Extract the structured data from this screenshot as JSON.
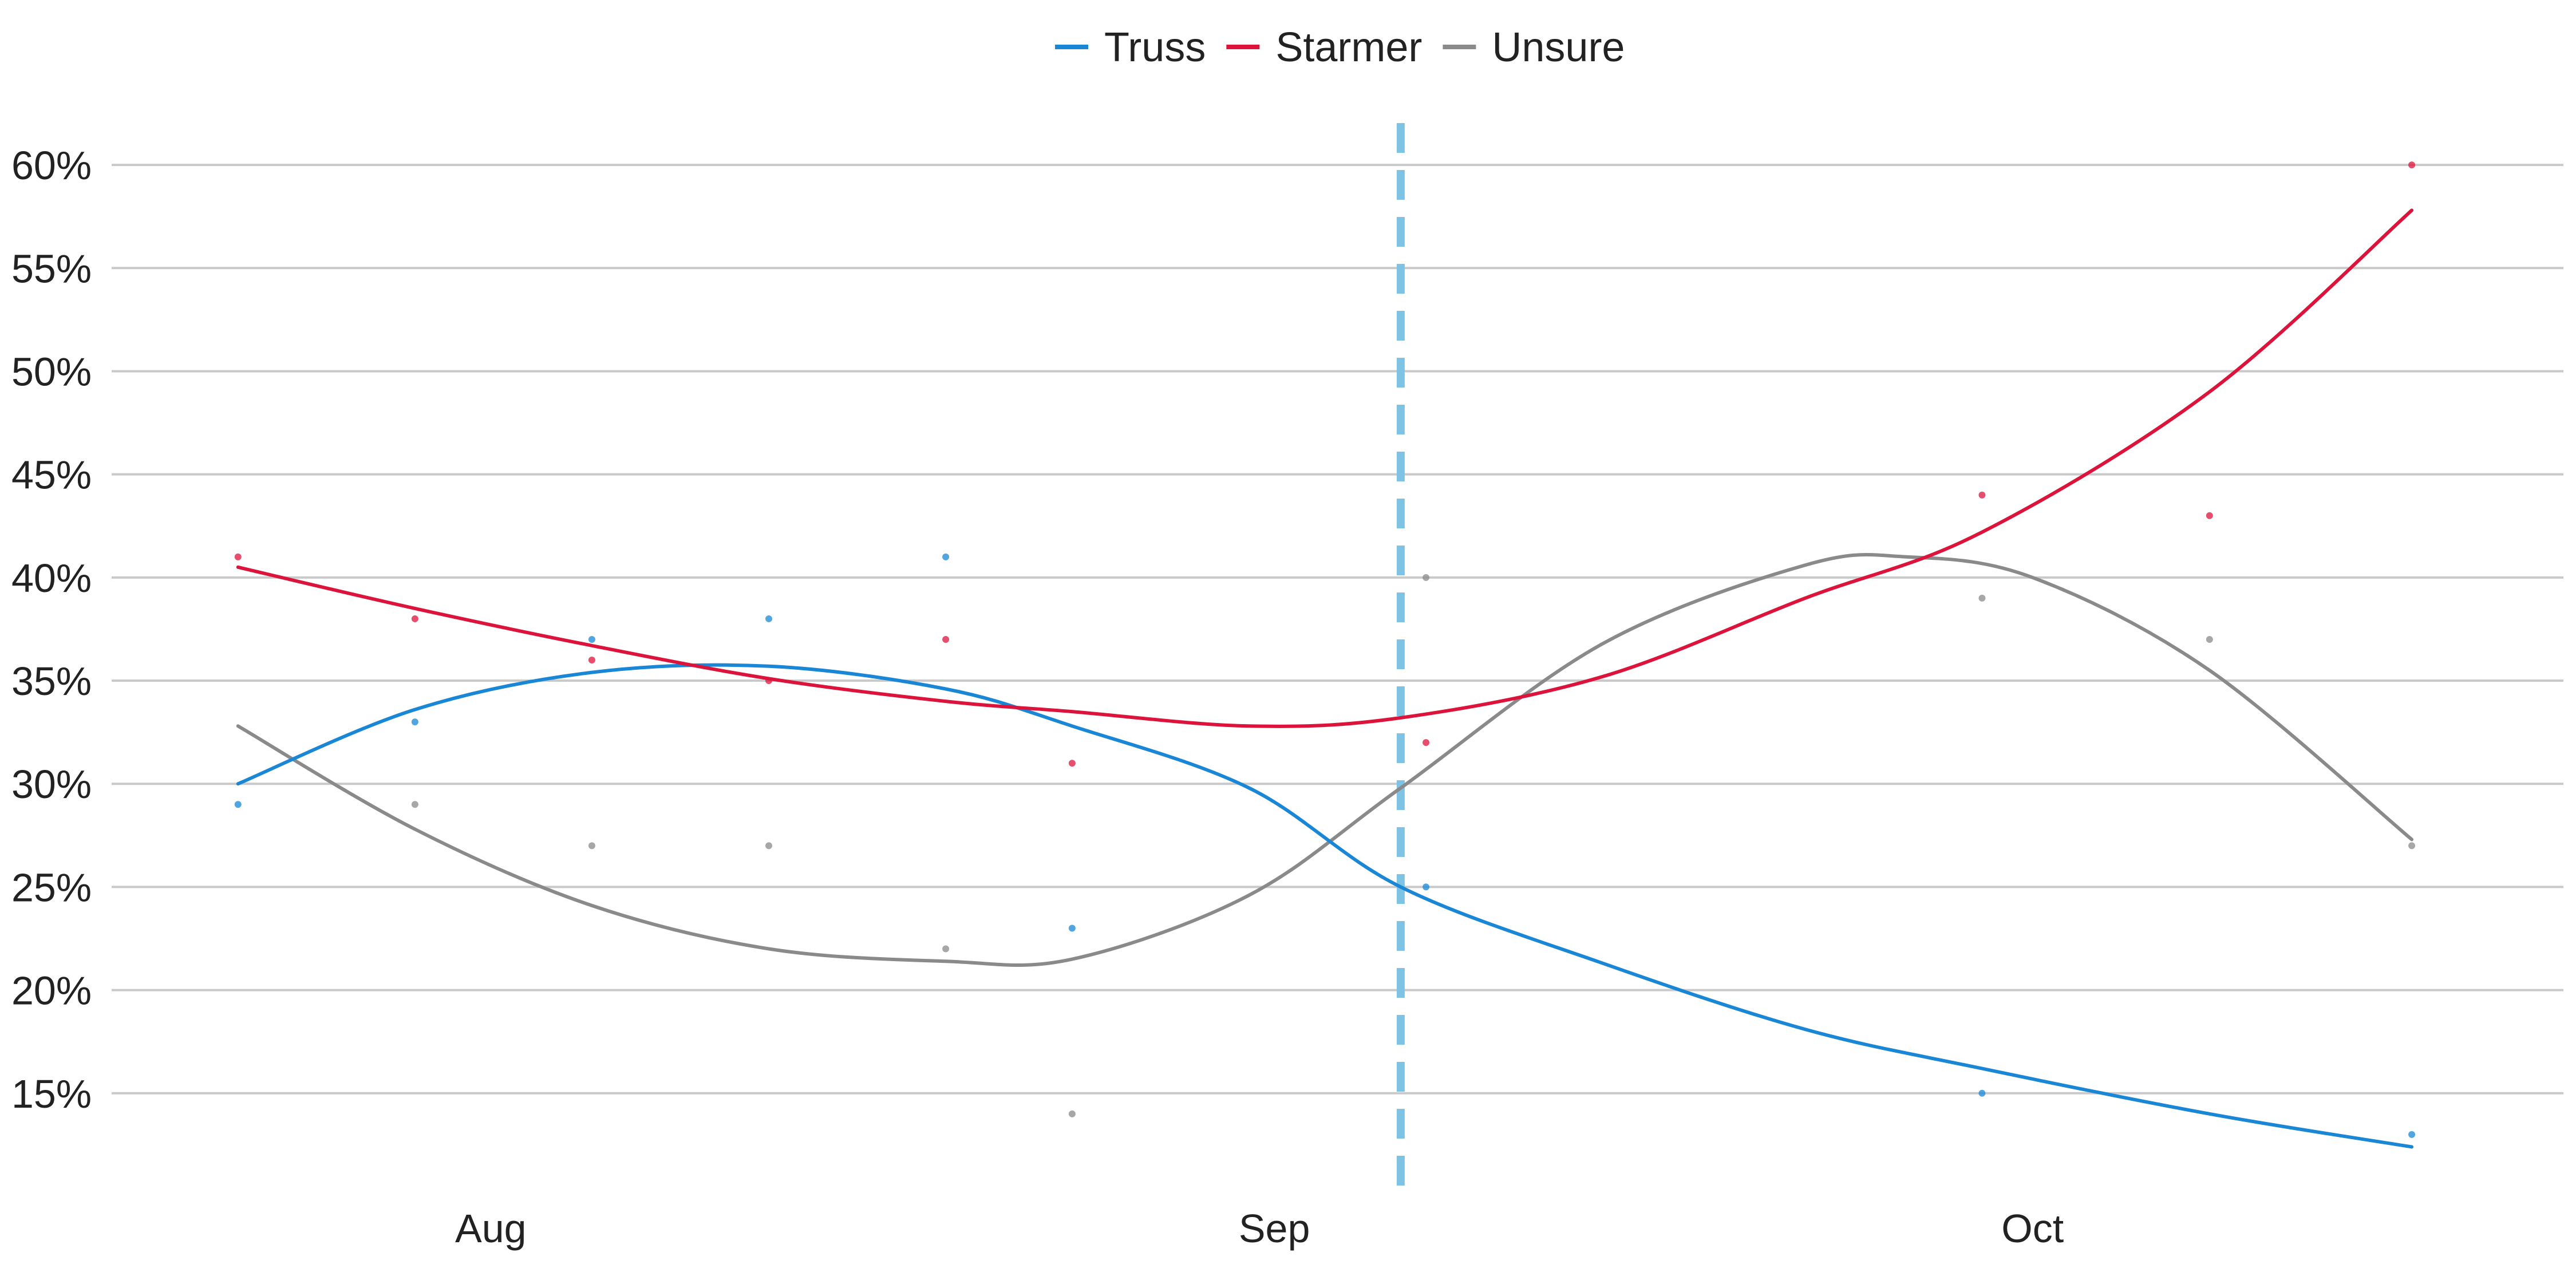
{
  "chart_data": {
    "type": "line",
    "x_axis": {
      "ticks": [
        {
          "label": "Aug",
          "date": "2022-08-01"
        },
        {
          "label": "Sep",
          "date": "2022-09-01"
        },
        {
          "label": "Oct",
          "date": "2022-10-01"
        }
      ],
      "range": [
        "2022-07-17",
        "2022-10-22"
      ]
    },
    "y_axis": {
      "ticks": [
        {
          "label": "15%",
          "value": 15
        },
        {
          "label": "20%",
          "value": 20
        },
        {
          "label": "25%",
          "value": 25
        },
        {
          "label": "30%",
          "value": 30
        },
        {
          "label": "35%",
          "value": 35
        },
        {
          "label": "40%",
          "value": 40
        },
        {
          "label": "45%",
          "value": 45
        },
        {
          "label": "50%",
          "value": 50
        },
        {
          "label": "55%",
          "value": 55
        },
        {
          "label": "60%",
          "value": 60
        }
      ],
      "range": [
        10,
        63
      ]
    },
    "grid": true,
    "legend_position": "top-center",
    "reference_line": {
      "date": "2022-09-06",
      "style": "dashed",
      "color": "#7ec3e3"
    },
    "series": [
      {
        "name": "Truss",
        "color": "#1a87d6",
        "points": [
          {
            "date": "2022-07-22",
            "value": 29
          },
          {
            "date": "2022-07-29",
            "value": 33
          },
          {
            "date": "2022-08-05",
            "value": 37
          },
          {
            "date": "2022-08-12",
            "value": 38
          },
          {
            "date": "2022-08-19",
            "value": 41
          },
          {
            "date": "2022-08-24",
            "value": 23
          },
          {
            "date": "2022-09-07",
            "value": 25
          },
          {
            "date": "2022-09-29",
            "value": 15
          },
          {
            "date": "2022-10-16",
            "value": 13
          }
        ],
        "trend": [
          {
            "date": "2022-07-22",
            "value": 30.0
          },
          {
            "date": "2022-07-29",
            "value": 33.6
          },
          {
            "date": "2022-08-05",
            "value": 35.4
          },
          {
            "date": "2022-08-12",
            "value": 35.7
          },
          {
            "date": "2022-08-19",
            "value": 34.6
          },
          {
            "date": "2022-08-24",
            "value": 32.8
          },
          {
            "date": "2022-08-31",
            "value": 29.8
          },
          {
            "date": "2022-09-06",
            "value": 25.0
          },
          {
            "date": "2022-09-14",
            "value": 21.3
          },
          {
            "date": "2022-09-22",
            "value": 18.1
          },
          {
            "date": "2022-09-29",
            "value": 16.2
          },
          {
            "date": "2022-10-08",
            "value": 14.0
          },
          {
            "date": "2022-10-16",
            "value": 12.4
          }
        ]
      },
      {
        "name": "Starmer",
        "color": "#dc143c",
        "points": [
          {
            "date": "2022-07-22",
            "value": 41
          },
          {
            "date": "2022-07-29",
            "value": 38
          },
          {
            "date": "2022-08-05",
            "value": 36
          },
          {
            "date": "2022-08-12",
            "value": 35
          },
          {
            "date": "2022-08-19",
            "value": 37
          },
          {
            "date": "2022-08-24",
            "value": 31
          },
          {
            "date": "2022-09-07",
            "value": 32
          },
          {
            "date": "2022-09-29",
            "value": 44
          },
          {
            "date": "2022-10-08",
            "value": 43
          },
          {
            "date": "2022-10-16",
            "value": 60
          }
        ],
        "trend": [
          {
            "date": "2022-07-22",
            "value": 40.5
          },
          {
            "date": "2022-07-29",
            "value": 38.5
          },
          {
            "date": "2022-08-05",
            "value": 36.7
          },
          {
            "date": "2022-08-12",
            "value": 35.1
          },
          {
            "date": "2022-08-19",
            "value": 34.0
          },
          {
            "date": "2022-08-24",
            "value": 33.5
          },
          {
            "date": "2022-08-31",
            "value": 32.8
          },
          {
            "date": "2022-09-06",
            "value": 33.2
          },
          {
            "date": "2022-09-14",
            "value": 35.2
          },
          {
            "date": "2022-09-22",
            "value": 39.0
          },
          {
            "date": "2022-09-29",
            "value": 42.2
          },
          {
            "date": "2022-10-08",
            "value": 49.0
          },
          {
            "date": "2022-10-16",
            "value": 57.8
          }
        ]
      },
      {
        "name": "Unsure",
        "color": "#8a8a8a",
        "points": [
          {
            "date": "2022-07-29",
            "value": 29
          },
          {
            "date": "2022-08-05",
            "value": 27
          },
          {
            "date": "2022-08-12",
            "value": 27
          },
          {
            "date": "2022-08-19",
            "value": 22
          },
          {
            "date": "2022-08-24",
            "value": 14
          },
          {
            "date": "2022-09-07",
            "value": 40
          },
          {
            "date": "2022-09-29",
            "value": 39
          },
          {
            "date": "2022-10-08",
            "value": 37
          },
          {
            "date": "2022-10-16",
            "value": 27
          }
        ],
        "trend": [
          {
            "date": "2022-07-22",
            "value": 32.8
          },
          {
            "date": "2022-07-29",
            "value": 27.8
          },
          {
            "date": "2022-08-05",
            "value": 24.1
          },
          {
            "date": "2022-08-12",
            "value": 22.0
          },
          {
            "date": "2022-08-19",
            "value": 21.4
          },
          {
            "date": "2022-08-24",
            "value": 21.5
          },
          {
            "date": "2022-08-31",
            "value": 24.6
          },
          {
            "date": "2022-09-06",
            "value": 29.8
          },
          {
            "date": "2022-09-14",
            "value": 36.8
          },
          {
            "date": "2022-09-22",
            "value": 40.6
          },
          {
            "date": "2022-09-26",
            "value": 41.0
          },
          {
            "date": "2022-10-01",
            "value": 40.0
          },
          {
            "date": "2022-10-08",
            "value": 35.5
          },
          {
            "date": "2022-10-16",
            "value": 27.3
          }
        ]
      }
    ]
  }
}
